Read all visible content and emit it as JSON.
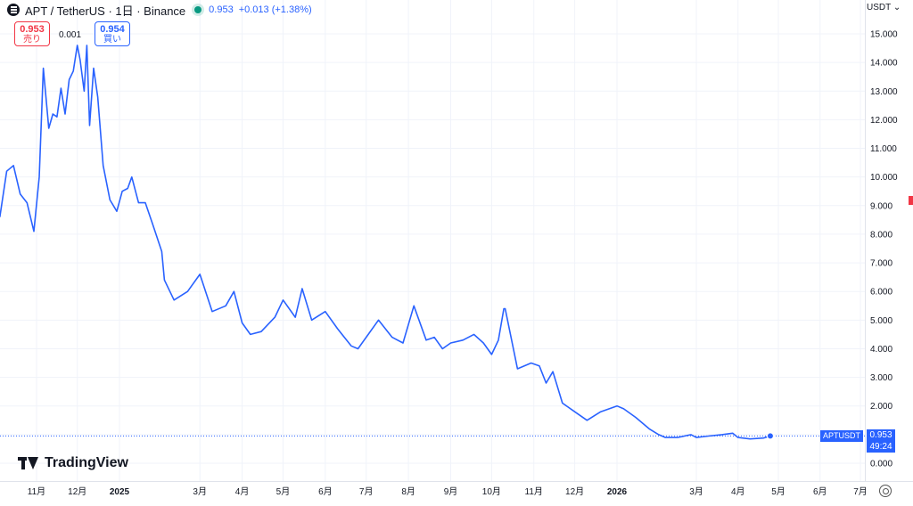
{
  "header": {
    "title": "APT / TetherUS · 1日 · Binance",
    "price": "0.953",
    "change": "+0.013 (+1.38%)"
  },
  "trade": {
    "sell_price": "0.953",
    "sell_label": "売り",
    "spread": "0.001",
    "buy_price": "0.954",
    "buy_label": "買い"
  },
  "currency": "USDT",
  "logo": "TradingView",
  "last_price": {
    "symbol": "APTUSDT",
    "price": "0.953",
    "countdown": "49:24"
  },
  "colors": {
    "line": "#2962ff",
    "grid": "#f0f3fa",
    "tag": "#2962ff",
    "sell": "#f23645",
    "dot": "#089981"
  },
  "chart_data": {
    "type": "line",
    "series": [
      {
        "x": [
          "2024-10-05",
          "2024-10-10",
          "2024-10-15",
          "2024-10-20",
          "2024-10-25",
          "2024-10-30",
          "2024-11-03",
          "2024-11-06",
          "2024-11-10",
          "2024-11-13",
          "2024-11-16",
          "2024-11-19",
          "2024-11-22",
          "2024-11-25",
          "2024-11-28",
          "2024-12-01",
          "2024-12-03",
          "2024-12-06",
          "2024-12-08",
          "2024-12-10",
          "2024-12-13",
          "2024-12-16",
          "2024-12-20",
          "2024-12-25",
          "2024-12-30",
          "2025-01-03",
          "2025-01-07",
          "2025-01-10",
          "2025-01-15",
          "2025-01-20",
          "2025-01-25",
          "2025-02-01",
          "2025-02-03",
          "2025-02-10",
          "2025-02-20",
          "2025-03-01",
          "2025-03-10",
          "2025-03-20",
          "2025-03-26",
          "2025-04-01",
          "2025-04-07",
          "2025-04-15",
          "2025-04-25",
          "2025-05-01",
          "2025-05-10",
          "2025-05-15",
          "2025-05-22",
          "2025-06-01",
          "2025-06-10",
          "2025-06-20",
          "2025-06-25",
          "2025-07-01",
          "2025-07-10",
          "2025-07-20",
          "2025-07-28",
          "2025-08-05",
          "2025-08-14",
          "2025-08-20",
          "2025-08-26",
          "2025-09-01",
          "2025-09-10",
          "2025-09-18",
          "2025-09-25",
          "2025-10-01",
          "2025-10-06",
          "2025-10-10",
          "2025-10-11",
          "2025-10-20",
          "2025-10-30",
          "2025-11-05",
          "2025-11-10",
          "2025-11-15",
          "2025-11-22",
          "2025-12-01",
          "2025-12-10",
          "2025-12-20",
          "2026-01-01",
          "2026-01-06",
          "2026-01-15",
          "2026-01-25",
          "2026-02-01",
          "2026-02-06",
          "2026-02-15",
          "2026-02-25",
          "2026-03-01",
          "2026-03-10",
          "2026-03-20",
          "2026-03-28",
          "2026-04-01",
          "2026-04-10",
          "2026-04-20",
          "2026-04-25"
        ],
        "y": [
          8.6,
          10.2,
          10.4,
          9.4,
          9.1,
          8.1,
          10.0,
          13.8,
          11.7,
          12.2,
          12.1,
          13.1,
          12.2,
          13.4,
          13.7,
          14.6,
          14.1,
          13.0,
          14.6,
          11.8,
          13.8,
          12.8,
          10.4,
          9.2,
          8.8,
          9.5,
          9.6,
          10.0,
          9.1,
          9.1,
          8.4,
          7.4,
          6.4,
          5.7,
          6.0,
          6.6,
          5.3,
          5.5,
          6.0,
          4.9,
          4.5,
          4.6,
          5.1,
          5.7,
          5.1,
          6.1,
          5.0,
          5.3,
          4.7,
          4.1,
          4.0,
          4.4,
          5.0,
          4.4,
          4.2,
          5.5,
          4.3,
          4.4,
          4.0,
          4.2,
          4.3,
          4.5,
          4.2,
          3.8,
          4.3,
          5.4,
          5.4,
          3.3,
          3.5,
          3.4,
          2.8,
          3.2,
          2.1,
          1.8,
          1.5,
          1.8,
          2.0,
          1.9,
          1.6,
          1.2,
          1.0,
          0.9,
          0.9,
          1.0,
          0.9,
          0.95,
          1.0,
          1.05,
          0.9,
          0.85,
          0.88,
          0.953
        ]
      }
    ],
    "yaxis": {
      "ticks": [
        "15.000",
        "14.000",
        "13.000",
        "12.000",
        "11.000",
        "10.000",
        "9.000",
        "8.000",
        "7.000",
        "6.000",
        "5.000",
        "4.000",
        "3.000",
        "2.000",
        "1.000",
        "0.000"
      ],
      "range": [
        0,
        15
      ]
    },
    "xaxis": {
      "ticks": [
        {
          "label": "11月",
          "date": "2024-11-01",
          "bold": false
        },
        {
          "label": "12月",
          "date": "2024-12-01",
          "bold": false
        },
        {
          "label": "2025",
          "date": "2025-01-01",
          "bold": true
        },
        {
          "label": "3月",
          "date": "2025-03-01",
          "bold": false
        },
        {
          "label": "4月",
          "date": "2025-04-01",
          "bold": false
        },
        {
          "label": "5月",
          "date": "2025-05-01",
          "bold": false
        },
        {
          "label": "6月",
          "date": "2025-06-01",
          "bold": false
        },
        {
          "label": "7月",
          "date": "2025-07-01",
          "bold": false
        },
        {
          "label": "8月",
          "date": "2025-08-01",
          "bold": false
        },
        {
          "label": "9月",
          "date": "2025-09-01",
          "bold": false
        },
        {
          "label": "10月",
          "date": "2025-10-01",
          "bold": false
        },
        {
          "label": "11月",
          "date": "2025-11-01",
          "bold": false
        },
        {
          "label": "12月",
          "date": "2025-12-01",
          "bold": false
        },
        {
          "label": "2026",
          "date": "2026-01-01",
          "bold": true
        },
        {
          "label": "3月",
          "date": "2026-03-01",
          "bold": false
        },
        {
          "label": "4月",
          "date": "2026-04-01",
          "bold": false
        },
        {
          "label": "5月",
          "date": "2026-05-01",
          "bold": false
        },
        {
          "label": "6月",
          "date": "2026-06-01",
          "bold": false
        },
        {
          "label": "7月",
          "date": "2026-07-01",
          "bold": false
        }
      ]
    },
    "grid": true
  }
}
